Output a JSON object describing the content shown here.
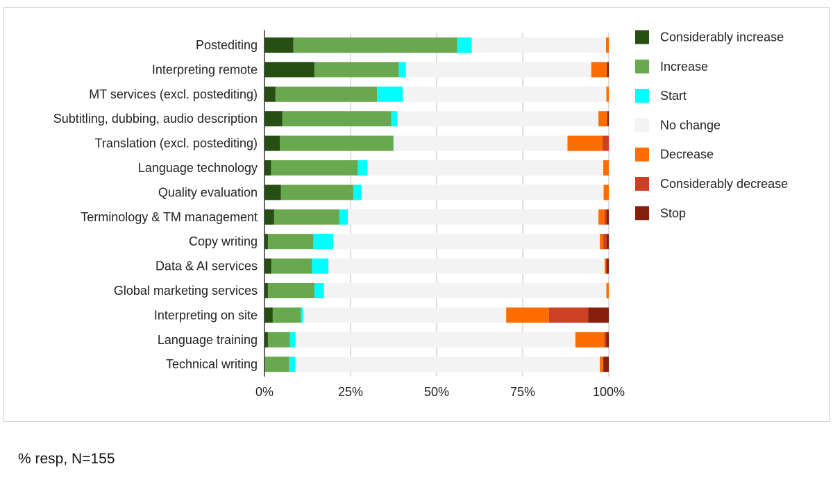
{
  "footnote": "% resp, N=155",
  "chart_data": {
    "type": "bar",
    "orientation": "horizontal",
    "stacked": true,
    "percent": true,
    "xlim": [
      0,
      100
    ],
    "xticks": [
      "0%",
      "25%",
      "50%",
      "75%",
      "100%"
    ],
    "xtick_values": [
      0,
      25,
      50,
      75,
      100
    ],
    "grid": "vertical",
    "legend_position": "right",
    "categories": [
      "Postediting",
      "Interpreting remote",
      "MT services (excl. postediting)",
      "Subtitling, dubbing, audio description",
      "Translation (excl. postediting)",
      "Language technology",
      "Quality evaluation",
      "Terminology & TM management",
      "Copy writing",
      "Data & AI services",
      "Global marketing services",
      "Interpreting on site",
      "Language training",
      "Technical writing"
    ],
    "series": [
      {
        "name": "Considerably increase",
        "color": "#274e13",
        "values": [
          8.4,
          14.5,
          3.2,
          5.2,
          4.5,
          1.9,
          4.8,
          2.8,
          1.0,
          2.0,
          1.0,
          2.4,
          1.0,
          0.0
        ]
      },
      {
        "name": "Increase",
        "color": "#6aa84f",
        "values": [
          47.6,
          24.5,
          29.5,
          31.6,
          32.8,
          25.2,
          21.0,
          19.0,
          13.2,
          11.8,
          13.5,
          8.2,
          6.4,
          7.2
        ]
      },
      {
        "name": "Start",
        "color": "#00ffff",
        "values": [
          4.2,
          2.1,
          7.5,
          1.8,
          0.3,
          2.8,
          2.4,
          2.4,
          5.8,
          4.8,
          2.8,
          0.6,
          1.6,
          1.8
        ]
      },
      {
        "name": "No change",
        "color": "#f3f3f3",
        "values": [
          39.0,
          53.8,
          59.1,
          58.4,
          50.4,
          68.5,
          70.3,
          72.8,
          77.4,
          80.2,
          82.0,
          59.0,
          81.3,
          88.4
        ]
      },
      {
        "name": "Decrease",
        "color": "#ff6d01",
        "values": [
          0.8,
          4.6,
          0.7,
          2.6,
          10.2,
          1.6,
          1.5,
          1.8,
          1.0,
          0.4,
          0.7,
          12.4,
          8.4,
          1.0
        ]
      },
      {
        "name": "Considerably decrease",
        "color": "#cc4125",
        "values": [
          0.0,
          0.0,
          0.0,
          0.0,
          1.8,
          0.0,
          0.0,
          0.6,
          1.0,
          0.2,
          0.0,
          11.4,
          0.6,
          0.0
        ]
      },
      {
        "name": "Stop",
        "color": "#85200c",
        "values": [
          0.0,
          0.5,
          0.0,
          0.4,
          0.0,
          0.0,
          0.0,
          0.6,
          0.6,
          0.6,
          0.0,
          6.0,
          0.7,
          1.6
        ]
      }
    ]
  }
}
